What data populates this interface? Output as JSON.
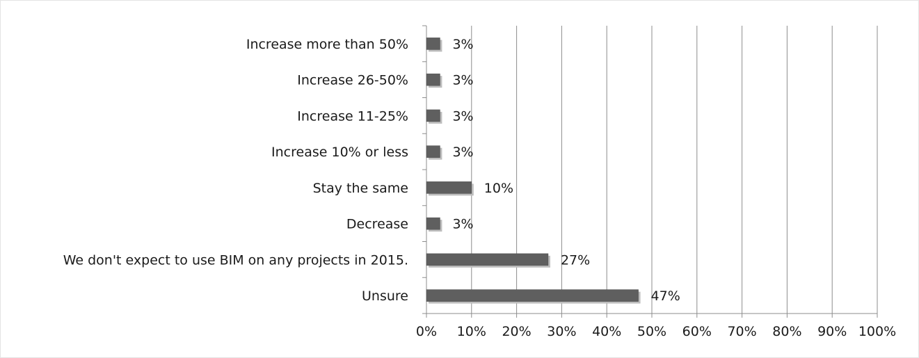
{
  "chart_data": {
    "type": "bar",
    "orientation": "horizontal",
    "title": "",
    "xlabel": "",
    "ylabel": "",
    "categories": [
      "Increase more than 50%",
      "Increase 26-50%",
      "Increase 11-25%",
      "Increase 10% or less",
      "Stay the same",
      "Decrease",
      "We don't expect to use BIM on any projects in 2015.",
      "Unsure"
    ],
    "values": [
      3,
      3,
      3,
      3,
      10,
      3,
      27,
      47
    ],
    "data_labels": [
      "3%",
      "3%",
      "3%",
      "3%",
      "10%",
      "3%",
      "27%",
      "47%"
    ],
    "xlim": [
      0,
      100
    ],
    "x_ticks": [
      0,
      10,
      20,
      30,
      40,
      50,
      60,
      70,
      80,
      90,
      100
    ],
    "x_tick_labels": [
      "0%",
      "10%",
      "20%",
      "30%",
      "40%",
      "50%",
      "60%",
      "70%",
      "80%",
      "90%",
      "100%"
    ],
    "grid": "vertical",
    "legend": "none",
    "colors": {
      "bar": "#5f5f5f",
      "bar_shadow": "#bdbdbd",
      "grid": "#8c8c8c",
      "axis": "#8c8c8c",
      "text": "#1a1a1a"
    }
  }
}
